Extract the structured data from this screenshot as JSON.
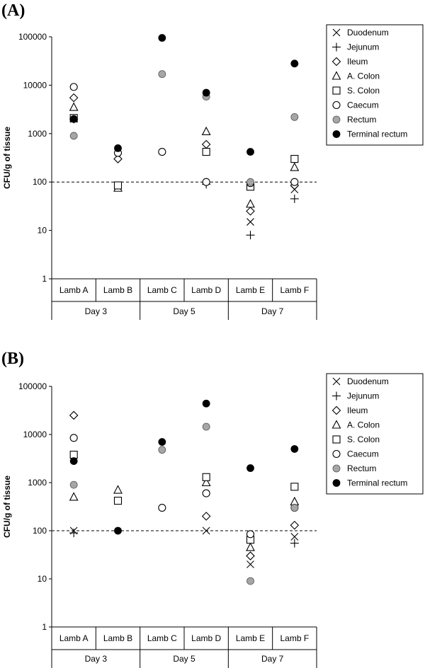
{
  "chart_data": [
    {
      "type": "scatter",
      "panel_label": "(A)",
      "ylabel": "CFU/g of tissue",
      "yscale": "log",
      "ylim": [
        1,
        100000
      ],
      "yticks": [
        "1",
        "10",
        "100",
        "1000",
        "10000",
        "100000"
      ],
      "threshold": 100,
      "categories": [
        "Lamb A",
        "Lamb B",
        "Lamb C",
        "Lamb D",
        "Lamb E",
        "Lamb F"
      ],
      "groups": [
        {
          "label": "Day 3",
          "span": [
            0,
            1
          ]
        },
        {
          "label": "Day 5",
          "span": [
            2,
            3
          ]
        },
        {
          "label": "Day 7",
          "span": [
            4,
            5
          ]
        }
      ],
      "series": [
        {
          "name": "Duodenum",
          "marker": "x",
          "values": [
            2000,
            null,
            null,
            null,
            15,
            70
          ]
        },
        {
          "name": "Jejunum",
          "marker": "plus",
          "values": [
            2000,
            null,
            null,
            90,
            8,
            45
          ]
        },
        {
          "name": "Ileum",
          "marker": "diamond",
          "values": [
            5500,
            300,
            null,
            600,
            25,
            85
          ]
        },
        {
          "name": "A. Colon",
          "marker": "triangle",
          "values": [
            3500,
            75,
            null,
            1100,
            35,
            200
          ]
        },
        {
          "name": "S. Colon",
          "marker": "square",
          "values": [
            2100,
            85,
            null,
            420,
            80,
            300
          ]
        },
        {
          "name": "Caecum",
          "marker": "circle-open",
          "values": [
            9200,
            400,
            420,
            100,
            95,
            100
          ]
        },
        {
          "name": "Rectum",
          "marker": "circle-gray",
          "values": [
            900,
            null,
            17000,
            5800,
            100,
            2200
          ]
        },
        {
          "name": "Terminal rectum",
          "marker": "circle-black",
          "values": [
            2000,
            500,
            95000,
            7000,
            420,
            28000
          ]
        }
      ]
    },
    {
      "type": "scatter",
      "panel_label": "(B)",
      "ylabel": "CFU/g of tissue",
      "yscale": "log",
      "ylim": [
        1,
        100000
      ],
      "yticks": [
        "1",
        "10",
        "100",
        "1000",
        "10000",
        "100000"
      ],
      "threshold": 100,
      "categories": [
        "Lamb A",
        "Lamb B",
        "Lamb C",
        "Lamb D",
        "Lamb E",
        "Lamb F"
      ],
      "groups": [
        {
          "label": "Day 3",
          "span": [
            0,
            1
          ]
        },
        {
          "label": "Day 5",
          "span": [
            2,
            3
          ]
        },
        {
          "label": "Day 7",
          "span": [
            4,
            5
          ]
        }
      ],
      "series": [
        {
          "name": "Duodenum",
          "marker": "x",
          "values": [
            100,
            null,
            null,
            100,
            20,
            75
          ]
        },
        {
          "name": "Jejunum",
          "marker": "plus",
          "values": [
            90,
            null,
            null,
            null,
            30,
            55
          ]
        },
        {
          "name": "Ileum",
          "marker": "diamond",
          "values": [
            25000,
            null,
            null,
            200,
            30,
            130
          ]
        },
        {
          "name": "A. Colon",
          "marker": "triangle",
          "values": [
            500,
            700,
            null,
            1000,
            45,
            400
          ]
        },
        {
          "name": "S. Colon",
          "marker": "square",
          "values": [
            3800,
            420,
            null,
            1300,
            65,
            820
          ]
        },
        {
          "name": "Caecum",
          "marker": "circle-open",
          "values": [
            8500,
            null,
            300,
            600,
            85,
            300
          ]
        },
        {
          "name": "Rectum",
          "marker": "circle-gray",
          "values": [
            900,
            null,
            4800,
            14500,
            9,
            300
          ]
        },
        {
          "name": "Terminal rectum",
          "marker": "circle-black",
          "values": [
            2800,
            100,
            7000,
            44000,
            2000,
            5000
          ]
        }
      ]
    }
  ],
  "colors": {
    "axis": "#000000",
    "rectum_fill": "#a6a6a6",
    "terminal_fill": "#000000",
    "open_fill": "#ffffff"
  }
}
